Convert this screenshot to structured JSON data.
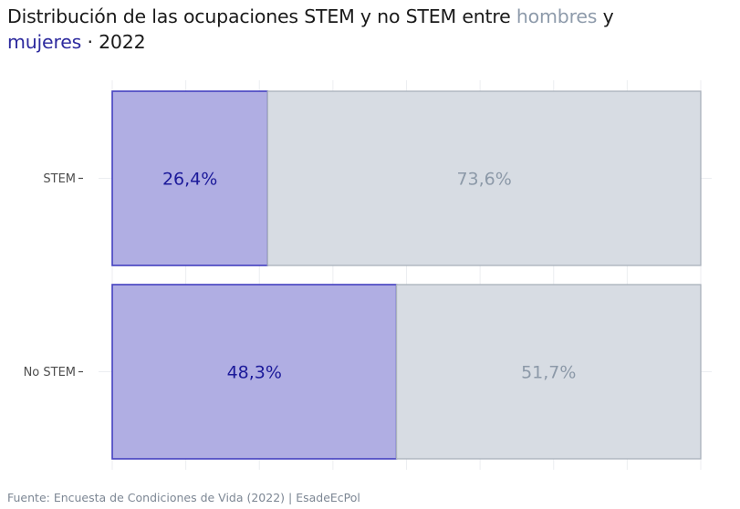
{
  "title": {
    "part1": "Distribución de las ocupaciones STEM y no STEM entre ",
    "hombres": "hombres",
    "part2": " y",
    "mujeres": "mujeres",
    "part3": " · 2022"
  },
  "source": "Fuente: Encuesta de Condiciones de Vida (2022) | EsadeEcPol",
  "colors": {
    "mujeres_fill": "#b0aee3",
    "mujeres_stroke": "#4440c0",
    "mujeres_text": "#1c1a9a",
    "hombres_fill": "#d7dce3",
    "hombres_stroke": "#a9b1bb",
    "hombres_text": "#8c99a8"
  },
  "chart_data": {
    "type": "bar",
    "orientation": "horizontal",
    "stacked": true,
    "categories": [
      "STEM",
      "No STEM"
    ],
    "series": [
      {
        "name": "mujeres",
        "values": [
          26.4,
          48.3
        ],
        "labels": [
          "26,4%",
          "48,3%"
        ]
      },
      {
        "name": "hombres",
        "values": [
          73.6,
          51.7
        ],
        "labels": [
          "73,6%",
          "51,7%"
        ]
      }
    ],
    "xlim": [
      0,
      100
    ],
    "grid": true
  }
}
